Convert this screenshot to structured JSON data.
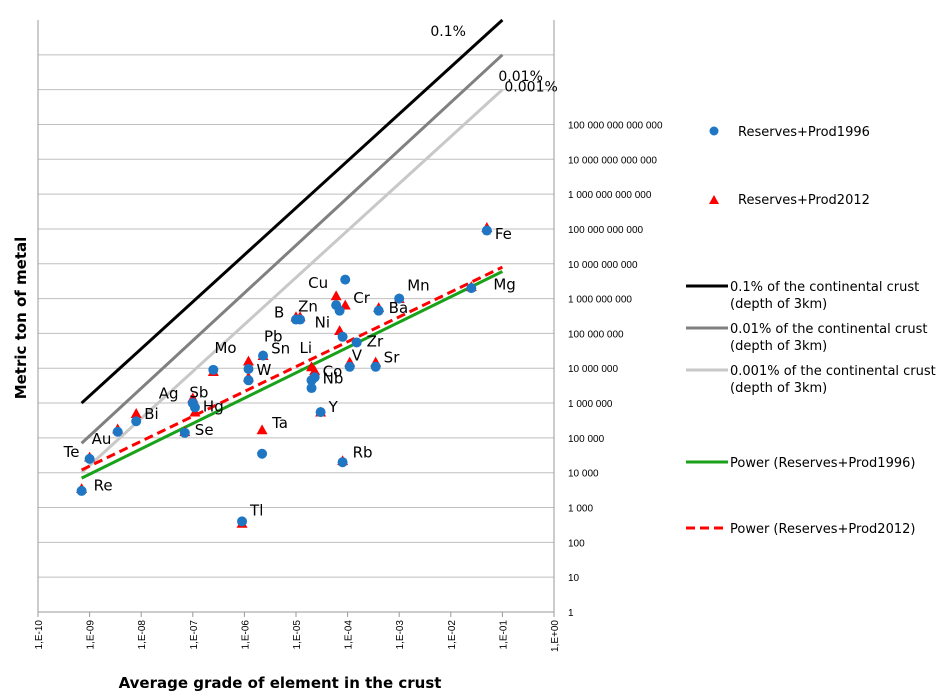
{
  "chart_data": {
    "type": "scatter",
    "title": "",
    "xlabel": "Average grade of element in the crust",
    "ylabel": "Metric ton of metal",
    "x_scale": "log",
    "y_scale": "log",
    "xlim": [
      1e-10,
      1
    ],
    "ylim": [
      1,
      1e+17
    ],
    "x_tick_labels": [
      "1,E-10",
      "1,E-09",
      "1,E-08",
      "1,E-07",
      "1,E-06",
      "1,E-05",
      "1,E-04",
      "1,E-03",
      "1,E-02",
      "1,E-01",
      "1,E+00"
    ],
    "y_tick_labels": [
      "1",
      "10",
      "100",
      "1 000",
      "10 000",
      "100 000",
      "1 000 000",
      "10 000 000",
      "100 000 000",
      "1 000 000 000",
      "10 000 000 000",
      "100 000 000 000",
      "1 000 000 000 000",
      "10 000 000 000 000",
      "100 000 000 000 000"
    ],
    "grid": "horizontal",
    "legend_position": "right",
    "series": [
      {
        "name": "Reserves+Prod1996",
        "marker": "circle",
        "color": "#1f77c4",
        "points": [
          {
            "x": 7e-10,
            "y": 3000
          },
          {
            "x": 1e-09,
            "y": 25000
          },
          {
            "x": 3.5e-09,
            "y": 150000
          },
          {
            "x": 8e-09,
            "y": 300000
          },
          {
            "x": 7e-08,
            "y": 140000
          },
          {
            "x": 1e-07,
            "y": 1000000
          },
          {
            "x": 1.1e-07,
            "y": 750000
          },
          {
            "x": 2.5e-07,
            "y": 9000000
          },
          {
            "x": 9e-07,
            "y": 400
          },
          {
            "x": 1.2e-06,
            "y": 4500000
          },
          {
            "x": 1.2e-06,
            "y": 9500000
          },
          {
            "x": 2.2e-06,
            "y": 35000
          },
          {
            "x": 2.3e-06,
            "y": 23000000
          },
          {
            "x": 1e-05,
            "y": 250000000
          },
          {
            "x": 1.2e-05,
            "y": 250000000
          },
          {
            "x": 2e-05,
            "y": 2700000
          },
          {
            "x": 2e-05,
            "y": 4500000
          },
          {
            "x": 2.3e-05,
            "y": 5500000
          },
          {
            "x": 3e-05,
            "y": 550000
          },
          {
            "x": 6e-05,
            "y": 650000000
          },
          {
            "x": 7e-05,
            "y": 450000000
          },
          {
            "x": 8e-05,
            "y": 80000000
          },
          {
            "x": 8e-05,
            "y": 20000
          },
          {
            "x": 9e-05,
            "y": 3500000000
          },
          {
            "x": 0.00011,
            "y": 11000000
          },
          {
            "x": 0.00015,
            "y": 55000000
          },
          {
            "x": 0.00035,
            "y": 11000000
          },
          {
            "x": 0.0004,
            "y": 450000000
          },
          {
            "x": 0.001,
            "y": 1000000000
          },
          {
            "x": 0.025,
            "y": 2000000000
          },
          {
            "x": 0.05,
            "y": 90000000000
          }
        ]
      },
      {
        "name": "Reserves+Prod2012",
        "marker": "triangle",
        "color": "#ff0000",
        "points": [
          {
            "x": 7e-10,
            "y": 3500
          },
          {
            "x": 1e-09,
            "y": 28000
          },
          {
            "x": 3.5e-09,
            "y": 180000
          },
          {
            "x": 8e-09,
            "y": 500000
          },
          {
            "x": 7e-08,
            "y": 150000
          },
          {
            "x": 1e-07,
            "y": 1400000
          },
          {
            "x": 1.1e-07,
            "y": 550000
          },
          {
            "x": 2.5e-07,
            "y": 8000000
          },
          {
            "x": 9e-07,
            "y": 350
          },
          {
            "x": 1.2e-06,
            "y": 5500000
          },
          {
            "x": 1.2e-06,
            "y": 16000000
          },
          {
            "x": 2.2e-06,
            "y": 170000
          },
          {
            "x": 2.3e-06,
            "y": 23000000
          },
          {
            "x": 1e-05,
            "y": 300000000
          },
          {
            "x": 1.2e-05,
            "y": 300000000
          },
          {
            "x": 2e-05,
            "y": 11000000
          },
          {
            "x": 2.3e-05,
            "y": 8500000
          },
          {
            "x": 3e-05,
            "y": 550000
          },
          {
            "x": 6e-05,
            "y": 1200000000
          },
          {
            "x": 7e-05,
            "y": 120000000
          },
          {
            "x": 8e-05,
            "y": 22000
          },
          {
            "x": 9e-05,
            "y": 650000000
          },
          {
            "x": 0.00011,
            "y": 15000000
          },
          {
            "x": 0.00035,
            "y": 15000000
          },
          {
            "x": 0.0004,
            "y": 550000000
          },
          {
            "x": 0.001,
            "y": 1000000000
          },
          {
            "x": 0.025,
            "y": 2200000000
          },
          {
            "x": 0.05,
            "y": 110000000000
          }
        ]
      },
      {
        "name": "0.1% of the continental crust (depth of 3km)",
        "line_label": "0.1%",
        "type": "line",
        "color": "#000000",
        "points": [
          {
            "x": 7e-10,
            "y": 1000000
          },
          {
            "x": 0.1,
            "y": 100000000000000000
          }
        ]
      },
      {
        "name": "0.01% of the continental crust (depth of 3km)",
        "line_label": "0.01%",
        "type": "line",
        "color": "#808080",
        "points": [
          {
            "x": 7e-10,
            "y": 70000
          },
          {
            "x": 0.1,
            "y": 10000000000000000
          }
        ]
      },
      {
        "name": "0.001% of the continental crust (depth of 3km)",
        "line_label": "0.001%",
        "type": "line",
        "color": "#c8c8c8",
        "points": [
          {
            "x": 7e-10,
            "y": 10000
          },
          {
            "x": 0.1,
            "y": 1000000000000000
          }
        ]
      },
      {
        "name": "Power (Reserves+Prod1996)",
        "type": "line",
        "color": "#1aa11a",
        "points": [
          {
            "x": 7e-10,
            "y": 7000
          },
          {
            "x": 0.1,
            "y": 6000000000
          }
        ]
      },
      {
        "name": "Power (Reserves+Prod2012)",
        "type": "line",
        "dashed": true,
        "color": "#ff0000",
        "points": [
          {
            "x": 7e-10,
            "y": 12000
          },
          {
            "x": 0.1,
            "y": 8000000000
          }
        ]
      }
    ],
    "element_labels": [
      {
        "text": "Re",
        "x": 7e-10,
        "y": 3500
      },
      {
        "text": "Te",
        "x": 1e-09,
        "y": 28000
      },
      {
        "text": "Au",
        "x": 3.5e-09,
        "y": 150000
      },
      {
        "text": "Bi",
        "x": 8e-09,
        "y": 400000
      },
      {
        "text": "Se",
        "x": 7e-08,
        "y": 140000
      },
      {
        "text": "Ag",
        "x": 1e-07,
        "y": 1200000
      },
      {
        "text": "Hg",
        "x": 1.1e-07,
        "y": 750000
      },
      {
        "text": "Sb",
        "x": 2.5e-07,
        "y": 8000000
      },
      {
        "text": "Tl",
        "x": 9e-07,
        "y": 400
      },
      {
        "text": "Mo",
        "x": 1.2e-06,
        "y": 16000000
      },
      {
        "text": "W",
        "x": 1.2e-06,
        "y": 9500000
      },
      {
        "text": "Ta",
        "x": 2.2e-06,
        "y": 170000
      },
      {
        "text": "Sn",
        "x": 2.3e-06,
        "y": 23000000
      },
      {
        "text": "B",
        "x": 1e-05,
        "y": 250000000
      },
      {
        "text": "Pb",
        "x": 1e-05,
        "y": 250000000
      },
      {
        "text": "Zn",
        "x": 1.2e-05,
        "y": 250000000
      },
      {
        "text": "Li",
        "x": 2e-05,
        "y": 11000000
      },
      {
        "text": "Co",
        "x": 2.3e-05,
        "y": 8500000
      },
      {
        "text": "Nb",
        "x": 2.3e-05,
        "y": 5500000
      },
      {
        "text": "Y",
        "x": 3e-05,
        "y": 550000
      },
      {
        "text": "Cu",
        "x": 6e-05,
        "y": 1200000000
      },
      {
        "text": "Cr",
        "x": 9e-05,
        "y": 650000000
      },
      {
        "text": "Ni",
        "x": 8e-05,
        "y": 100000000
      },
      {
        "text": "Rb",
        "x": 8e-05,
        "y": 21000
      },
      {
        "text": "V",
        "x": 0.00011,
        "y": 13000000
      },
      {
        "text": "Zr",
        "x": 0.00015,
        "y": 55000000
      },
      {
        "text": "Sr",
        "x": 0.00035,
        "y": 13000000
      },
      {
        "text": "Ba",
        "x": 0.0004,
        "y": 500000000
      },
      {
        "text": "Mn",
        "x": 0.001,
        "y": 1000000000
      },
      {
        "text": "Mg",
        "x": 0.025,
        "y": 2100000000
      },
      {
        "text": "Fe",
        "x": 0.05,
        "y": 100000000000
      }
    ]
  }
}
